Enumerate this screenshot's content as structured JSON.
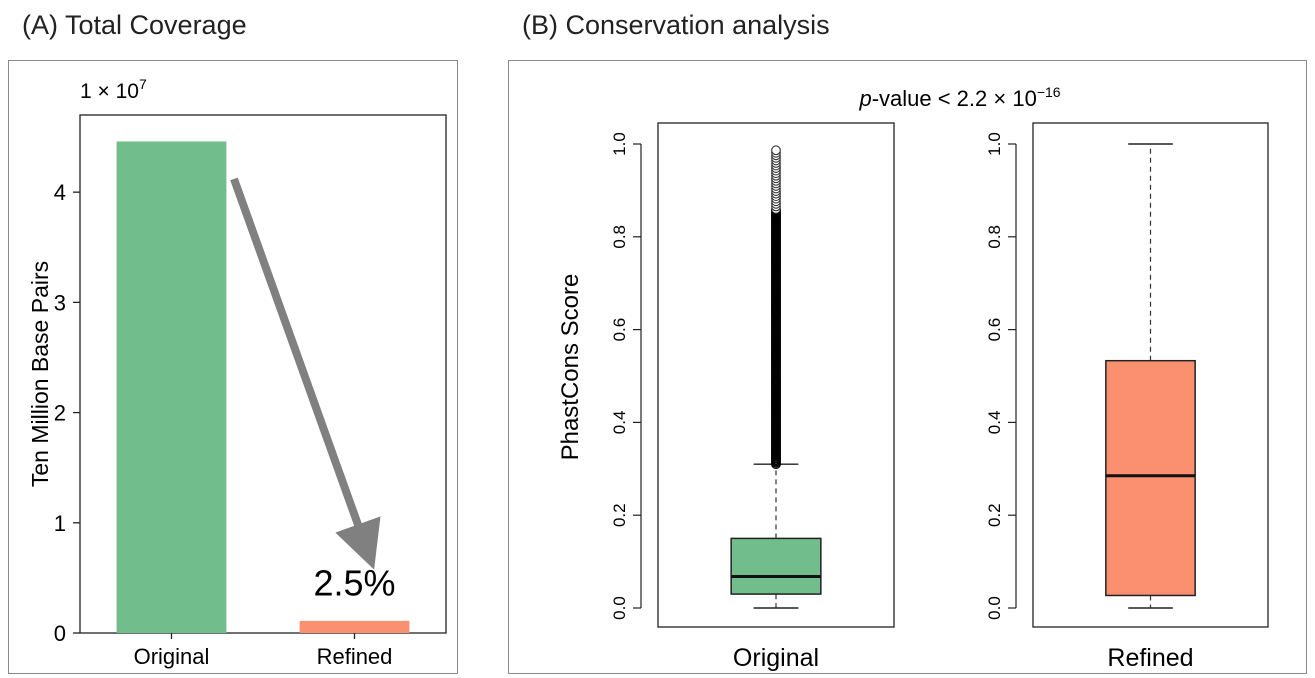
{
  "panels": {
    "a_title": "(A) Total Coverage",
    "b_title": "(B) Conservation analysis"
  },
  "chart_data": [
    {
      "type": "bar",
      "title": "(A) Total Coverage",
      "ylabel": "Ten Million Base Pairs",
      "xlabel": "",
      "scale_base": "1 × 10",
      "scale_exp": "7",
      "categories": [
        "Original",
        "Refined"
      ],
      "values": [
        4.46,
        0.11
      ],
      "colors": [
        "#72bd8c",
        "#fa9070"
      ],
      "ylim": [
        0,
        4.7
      ],
      "yticks": [
        0,
        1,
        2,
        3,
        4
      ],
      "annotation": "2.5%",
      "arrow_color": "#808080",
      "grid": false
    },
    {
      "type": "box",
      "title": "(B) Conservation analysis",
      "subtitle_italic": "p",
      "subtitle_rest": "-value < 2.2 × 10",
      "subtitle_exp": "−16",
      "ylabel": "PhastCons Score",
      "ylim": [
        0,
        1
      ],
      "yticks": [
        "0.0",
        "0.2",
        "0.4",
        "0.6",
        "0.8",
        "1.0"
      ],
      "grid": false,
      "boxes": [
        {
          "name": "Original",
          "color": "#72bd8c",
          "whisker_low": 0.0,
          "q1": 0.03,
          "median": 0.068,
          "q3": 0.15,
          "whisker_high": 0.31,
          "outlier_range": [
            0.31,
            0.99
          ]
        },
        {
          "name": "Refined",
          "color": "#fa9070",
          "whisker_low": 0.0,
          "q1": 0.027,
          "median": 0.285,
          "q3": 0.533,
          "whisker_high": 1.0,
          "outlier_range": null
        }
      ]
    }
  ]
}
